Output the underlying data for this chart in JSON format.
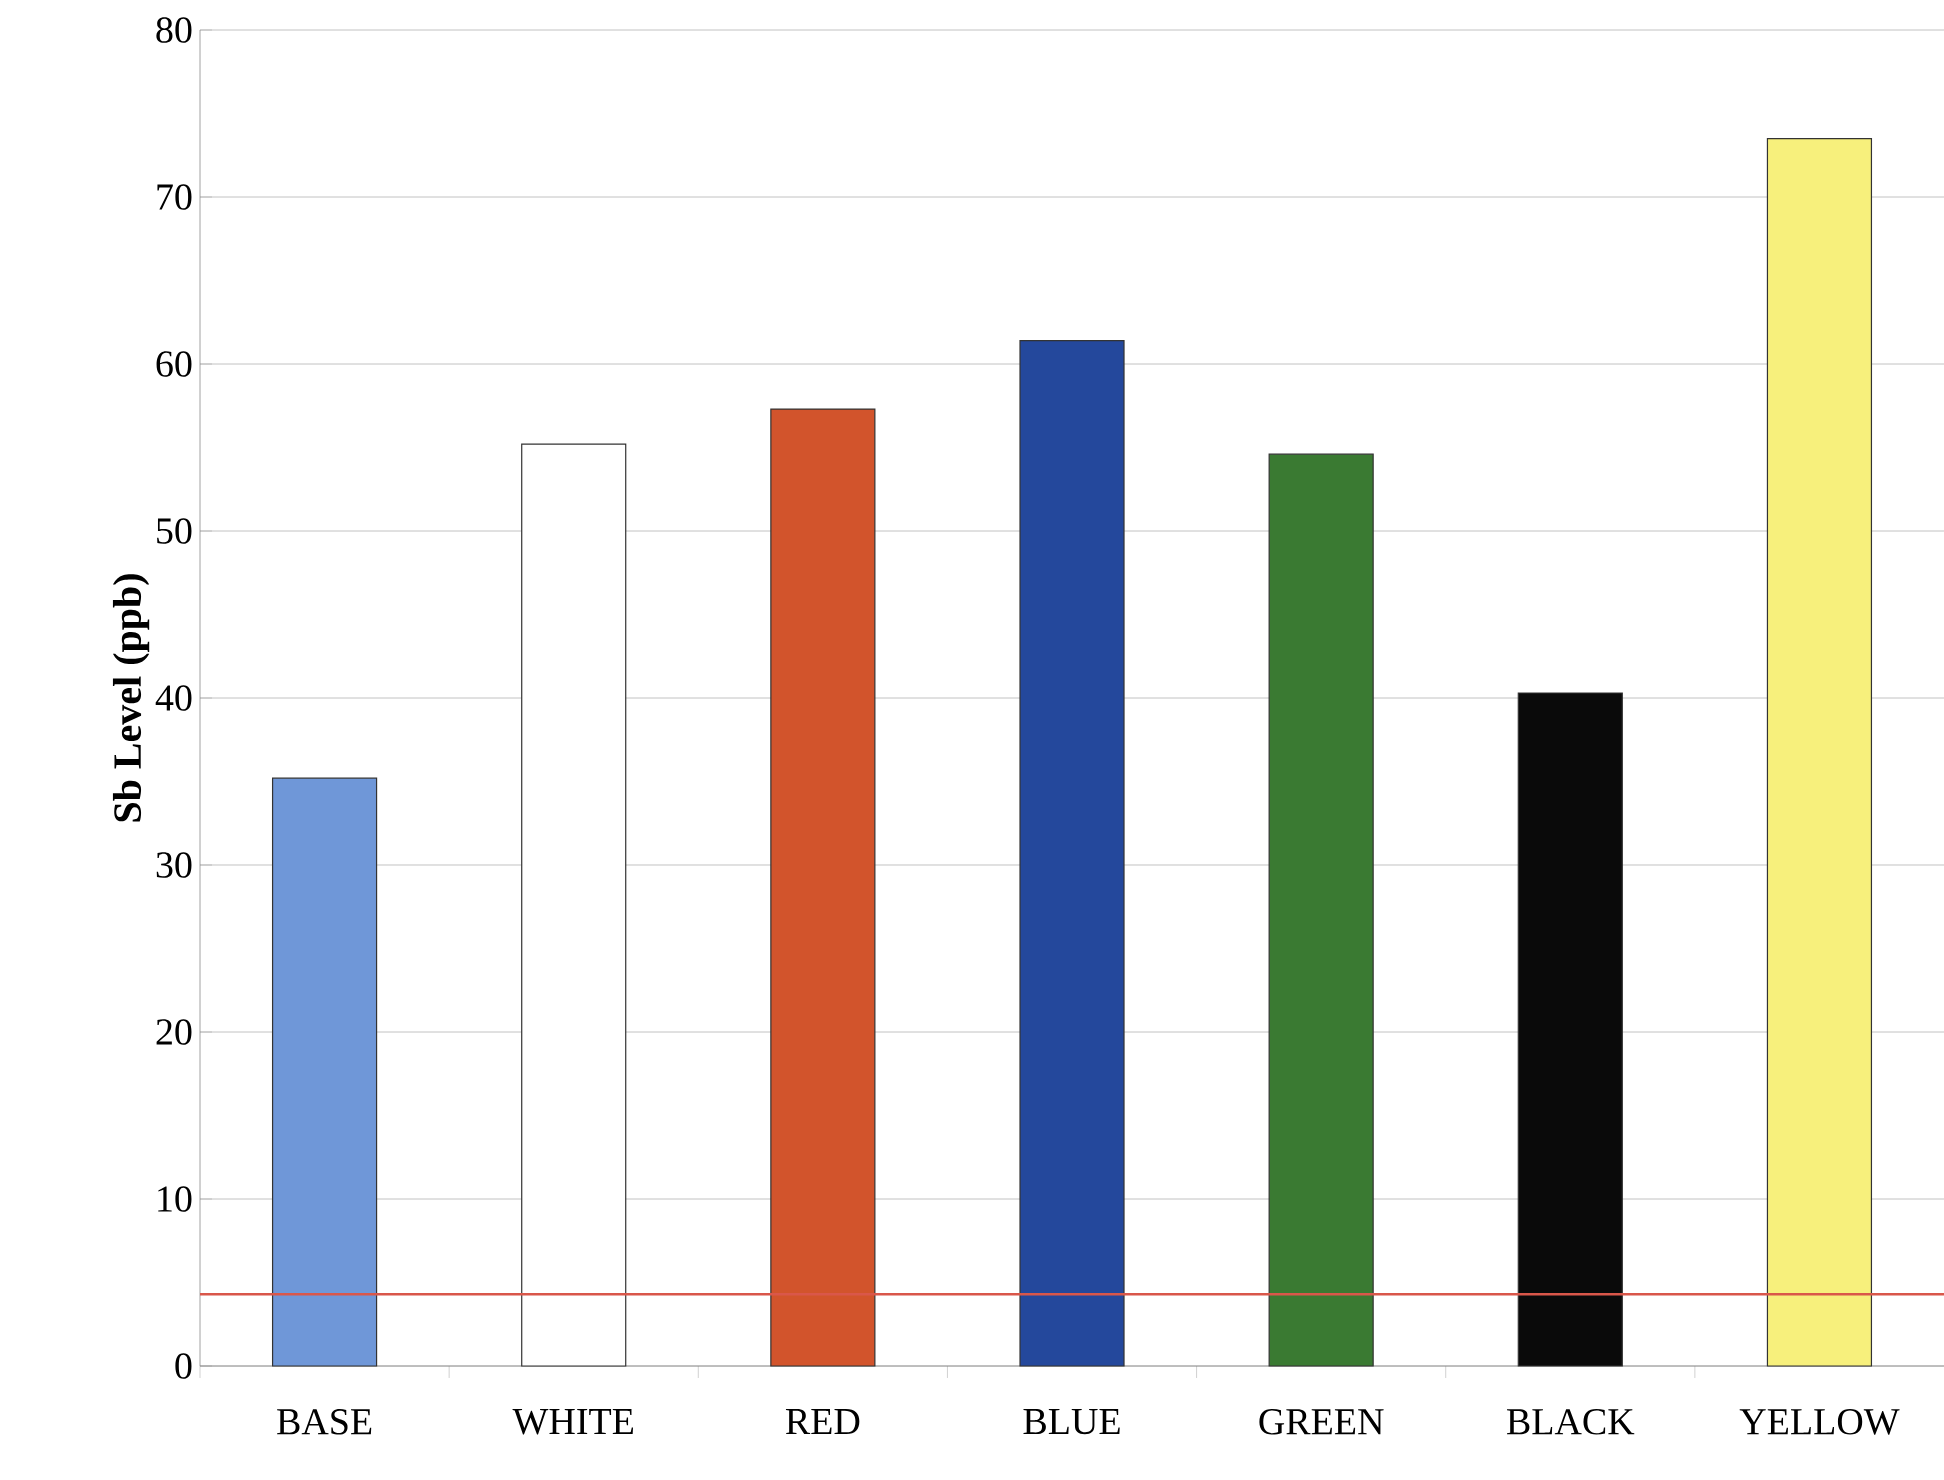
{
  "chart_data": {
    "type": "bar",
    "ylabel": "Sb Level (ppb)",
    "categories": [
      "BASE",
      "WHITE",
      "RED",
      "BLUE",
      "GREEN",
      "BLACK",
      "YELLOW"
    ],
    "values": [
      35.2,
      55.2,
      57.3,
      61.4,
      54.6,
      40.3,
      73.5
    ],
    "colors": [
      "#6f97d8",
      "#ffffff",
      "#d2542c",
      "#24489c",
      "#3a7a32",
      "#0a0a0a",
      "#f7f07c"
    ],
    "ylim": [
      0,
      80
    ],
    "yticks": [
      0,
      10,
      20,
      30,
      40,
      50,
      60,
      70,
      80
    ],
    "grid": "y",
    "ref_lines": [
      {
        "axis": "y",
        "value": 4.3,
        "color": "#d9574a"
      }
    ]
  }
}
